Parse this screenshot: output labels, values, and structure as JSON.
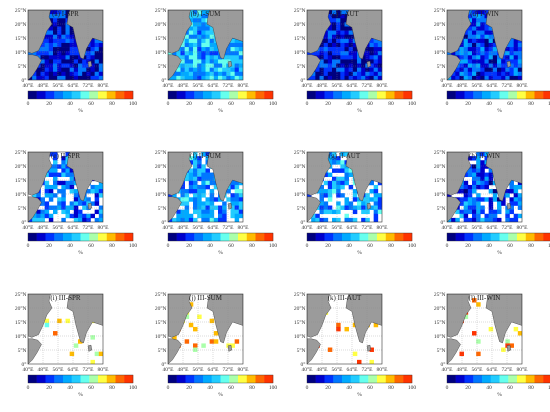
{
  "panels": [
    {
      "title": "(a) I-SPR"
    },
    {
      "title": "(b) I-SUM"
    },
    {
      "title": "(c) I-AUT"
    },
    {
      "title": "(d) I-WIN"
    },
    {
      "title": "(e) II-SPR"
    },
    {
      "title": "(f) II-SUM"
    },
    {
      "title": "(g) II-AUT"
    },
    {
      "title": "(h) II-WIN"
    },
    {
      "title": "(i) III-SPR"
    },
    {
      "title": "(j) III-SUM"
    },
    {
      "title": "(k) III-AUT"
    },
    {
      "title": "(l) III-WIN"
    }
  ],
  "lat_ticks": [
    "0°",
    "5°N",
    "10°N",
    "15°N",
    "20°N",
    "25°N"
  ],
  "lon_ticks": [
    "40°E",
    "48°E",
    "56°E",
    "64°E",
    "72°E",
    "80°E"
  ],
  "colorbar": {
    "ticks": [
      "0",
      "20",
      "40",
      "60",
      "80",
      "100"
    ],
    "unit": "%",
    "colors": [
      "#00007f",
      "#0000cc",
      "#0033ff",
      "#0077ff",
      "#00aaff",
      "#22ccff",
      "#66ffee",
      "#aaffaa",
      "#ffff44",
      "#ffbb00",
      "#ff6600",
      "#ff3300"
    ]
  },
  "colors": {
    "land": "#9b9b9b",
    "missing": "#ffffff"
  },
  "rows": [
    {
      "coverage": 1.0,
      "level": [
        0.15,
        0.4,
        0.15,
        0.22
      ]
    },
    {
      "coverage": 0.7,
      "level": [
        0.3,
        0.35,
        0.35,
        0.25
      ]
    },
    {
      "coverage": 0.08,
      "level": [
        0.7,
        0.75,
        0.85,
        0.8
      ]
    }
  ]
}
